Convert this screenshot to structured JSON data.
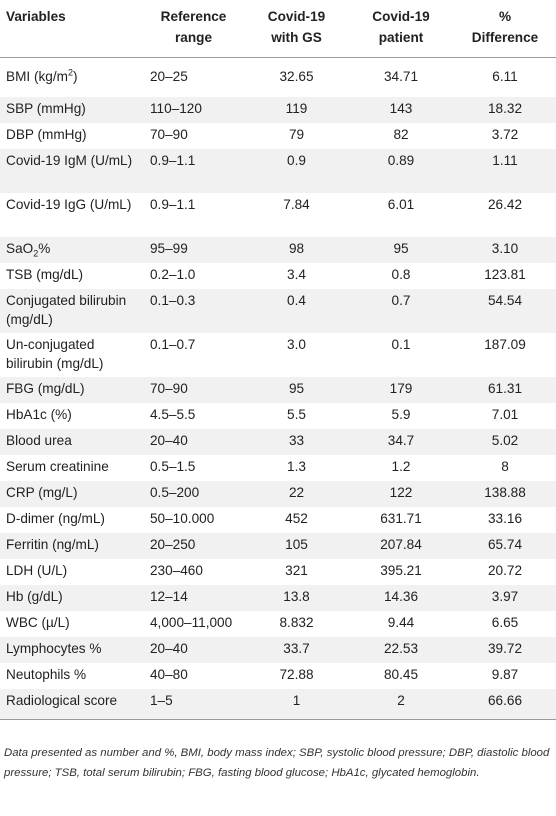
{
  "headers": [
    [
      "Variables"
    ],
    [
      "Reference",
      "range"
    ],
    [
      "Covid-19",
      "with GS"
    ],
    [
      "Covid-19",
      "patient"
    ],
    [
      "%",
      "Difference"
    ]
  ],
  "rows": [
    {
      "name": "BMI (kg/m",
      "sup": "2",
      "tail": ")",
      "ref": "20–25",
      "gs": "32.65",
      "patient": "34.71",
      "diff": "6.11"
    },
    {
      "name": "SBP (mmHg)",
      "ref": "110–120",
      "gs": "119",
      "patient": "143",
      "diff": "18.32"
    },
    {
      "name": "DBP (mmHg)",
      "ref": "70–90",
      "gs": "79",
      "patient": "82",
      "diff": "3.72"
    },
    {
      "name": "Covid-19 IgM (U/mL)",
      "ref": "0.9–1.1",
      "gs": "0.9",
      "patient": "0.89",
      "diff": "1.11"
    },
    {
      "name": "Covid-19 IgG (U/mL)",
      "ref": "0.9–1.1",
      "gs": "7.84",
      "patient": "6.01",
      "diff": "26.42"
    },
    {
      "name": "SaO",
      "sub": "2",
      "tail": "%",
      "ref": "95–99",
      "gs": "98",
      "patient": "95",
      "diff": "3.10"
    },
    {
      "name": "TSB (mg/dL)",
      "ref": "0.2–1.0",
      "gs": "3.4",
      "patient": "0.8",
      "diff": "123.81"
    },
    {
      "name": "Conjugated bilirubin (mg/dL)",
      "ref": "0.1–0.3",
      "gs": "0.4",
      "patient": "0.7",
      "diff": "54.54"
    },
    {
      "name": "Un-conjugated bilirubin (mg/dL)",
      "ref": "0.1–0.7",
      "gs": "3.0",
      "patient": "0.1",
      "diff": "187.09"
    },
    {
      "name": "FBG (mg/dL)",
      "ref": "70–90",
      "gs": "95",
      "patient": "179",
      "diff": "61.31"
    },
    {
      "name": "HbA1c (%)",
      "ref": "4.5–5.5",
      "gs": "5.5",
      "patient": "5.9",
      "diff": "7.01"
    },
    {
      "name": "Blood urea",
      "ref": "20–40",
      "gs": "33",
      "patient": "34.7",
      "diff": "5.02"
    },
    {
      "name": "Serum creatinine",
      "ref": "0.5–1.5",
      "gs": "1.3",
      "patient": "1.2",
      "diff": "8"
    },
    {
      "name": "CRP (mg/L)",
      "ref": "0.5–200",
      "gs": "22",
      "patient": "122",
      "diff": "138.88"
    },
    {
      "name": "D-dimer (ng/mL)",
      "ref": "50–10.000",
      "gs": "452",
      "patient": "631.71",
      "diff": "33.16"
    },
    {
      "name": "Ferritin (ng/mL)",
      "ref": "20–250",
      "gs": "105",
      "patient": "207.84",
      "diff": "65.74"
    },
    {
      "name": "LDH (U/L)",
      "ref": "230–460",
      "gs": "321",
      "patient": "395.21",
      "diff": "20.72"
    },
    {
      "name": "Hb (g/dL)",
      "ref": "12–14",
      "gs": "13.8",
      "patient": "14.36",
      "diff": "3.97"
    },
    {
      "name": "WBC (µ/L)",
      "ref": "4,000–11,000",
      "gs": "8.832",
      "patient": "9.44",
      "diff": "6.65"
    },
    {
      "name": "Lymphocytes %",
      "ref": "20–40",
      "gs": "33.7",
      "patient": "22.53",
      "diff": "39.72"
    },
    {
      "name": "Neutophils %",
      "ref": "40–80",
      "gs": "72.88",
      "patient": "80.45",
      "diff": "9.87"
    },
    {
      "name": "Radiological score",
      "ref": "1–5",
      "gs": "1",
      "patient": "2",
      "diff": "66.66"
    }
  ],
  "footnote": "Data presented as number and %, BMI, body mass index; SBP, systolic blood pressure; DBP, diastolic blood pressure; TSB, total serum bilirubin; FBG, fasting blood glucose; HbA1c, glycated hemoglobin."
}
